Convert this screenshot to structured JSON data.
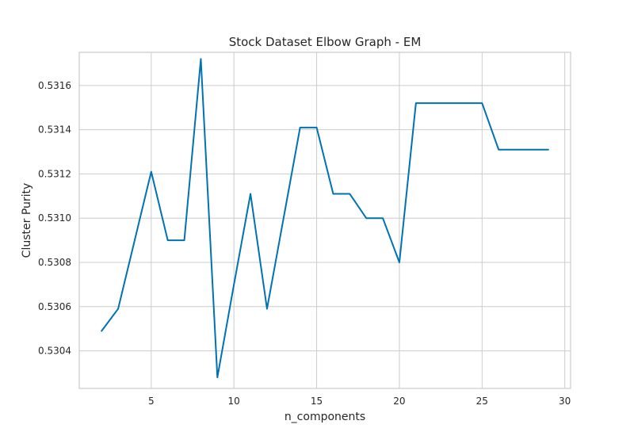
{
  "chart_data": {
    "type": "line",
    "title": "Stock Dataset Elbow Graph - EM",
    "xlabel": "n_components",
    "ylabel": "Cluster Purity",
    "xlim": [
      0.65,
      30.35
    ],
    "ylim": [
      0.53023,
      0.53175
    ],
    "xticks": [
      5,
      10,
      15,
      20,
      25,
      30
    ],
    "yticks": [
      0.5304,
      0.5306,
      0.5308,
      0.531,
      0.5312,
      0.5314,
      0.5316
    ],
    "ytick_labels": [
      "0.5304",
      "0.5306",
      "0.5308",
      "0.5310",
      "0.5312",
      "0.5314",
      "0.5316"
    ],
    "grid": true,
    "line_color": "#0072b2",
    "series": [
      {
        "x": [
          2,
          3,
          4,
          5,
          6,
          7,
          8,
          9,
          10,
          11,
          12,
          13,
          14,
          15,
          16,
          17,
          18,
          19,
          20,
          21,
          22,
          23,
          24,
          25,
          26,
          27,
          28,
          29
        ],
        "values": [
          0.53049,
          0.53059,
          0.5309,
          0.53121,
          0.5309,
          0.5309,
          0.53172,
          0.53028,
          0.5307,
          0.53111,
          0.53059,
          0.531,
          0.53141,
          0.53141,
          0.53111,
          0.53111,
          0.531,
          0.531,
          0.5308,
          0.53152,
          0.53152,
          0.53152,
          0.53152,
          0.53152,
          0.53131,
          0.53131,
          0.53131,
          0.53131
        ]
      }
    ]
  }
}
